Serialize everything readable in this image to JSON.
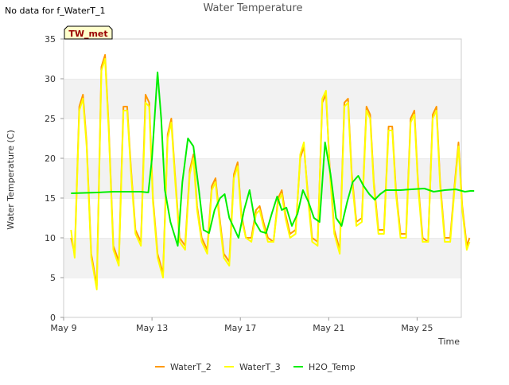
{
  "note": "No data for f_WaterT_1",
  "chart_data": {
    "type": "line",
    "title": "Water Temperature",
    "xlabel": "Time",
    "ylabel": "Water Temperature (C)",
    "site_badge": "TW_met",
    "ylim": [
      0,
      35
    ],
    "yticks": [
      0,
      5,
      10,
      15,
      20,
      25,
      30,
      35
    ],
    "xlim": [
      "2024-05-09",
      "2024-05-27"
    ],
    "xticks": [
      {
        "date": "2024-05-09",
        "label": "May 9"
      },
      {
        "date": "2024-05-13",
        "label": "May 13"
      },
      {
        "date": "2024-05-17",
        "label": "May 17"
      },
      {
        "date": "2024-05-21",
        "label": "May 21"
      },
      {
        "date": "2024-05-25",
        "label": "May 25"
      }
    ],
    "grid": "horizontal bands",
    "legend_position": "bottom",
    "series": [
      {
        "name": "WaterT_2",
        "color": "#ff9900",
        "points": [
          [
            "2024-05-09T08:00",
            10.0
          ],
          [
            "2024-05-09T12:00",
            8.0
          ],
          [
            "2024-05-09T17:00",
            26.5
          ],
          [
            "2024-05-09T21:00",
            28.0
          ],
          [
            "2024-05-10T01:00",
            22.0
          ],
          [
            "2024-05-10T06:00",
            8.0
          ],
          [
            "2024-05-10T12:00",
            4.0
          ],
          [
            "2024-05-10T17:00",
            31.5
          ],
          [
            "2024-05-10T21:00",
            33.0
          ],
          [
            "2024-05-11T01:00",
            24.0
          ],
          [
            "2024-05-11T06:00",
            9.0
          ],
          [
            "2024-05-11T12:00",
            7.0
          ],
          [
            "2024-05-11T17:00",
            26.5
          ],
          [
            "2024-05-11T21:00",
            26.5
          ],
          [
            "2024-05-12T01:00",
            19.0
          ],
          [
            "2024-05-12T06:00",
            11.0
          ],
          [
            "2024-05-12T12:00",
            9.5
          ],
          [
            "2024-05-12T17:00",
            28.0
          ],
          [
            "2024-05-12T21:00",
            27.0
          ],
          [
            "2024-05-13T01:00",
            15.0
          ],
          [
            "2024-05-13T06:00",
            8.0
          ],
          [
            "2024-05-13T12:00",
            5.5
          ],
          [
            "2024-05-13T17:00",
            23.0
          ],
          [
            "2024-05-13T21:00",
            25.0
          ],
          [
            "2024-05-14T01:00",
            18.0
          ],
          [
            "2024-05-14T06:00",
            10.0
          ],
          [
            "2024-05-14T12:00",
            9.0
          ],
          [
            "2024-05-14T17:00",
            18.5
          ],
          [
            "2024-05-14T21:00",
            20.5
          ],
          [
            "2024-05-15T01:00",
            14.0
          ],
          [
            "2024-05-15T06:00",
            10.0
          ],
          [
            "2024-05-15T12:00",
            8.5
          ],
          [
            "2024-05-15T17:00",
            16.5
          ],
          [
            "2024-05-15T21:00",
            17.5
          ],
          [
            "2024-05-16T01:00",
            13.0
          ],
          [
            "2024-05-16T06:00",
            8.0
          ],
          [
            "2024-05-16T12:00",
            7.0
          ],
          [
            "2024-05-16T17:00",
            18.0
          ],
          [
            "2024-05-16T21:00",
            19.5
          ],
          [
            "2024-05-17T01:00",
            13.0
          ],
          [
            "2024-05-17T06:00",
            10.0
          ],
          [
            "2024-05-17T12:00",
            10.0
          ],
          [
            "2024-05-17T17:00",
            13.5
          ],
          [
            "2024-05-17T21:00",
            14.0
          ],
          [
            "2024-05-18T01:00",
            12.0
          ],
          [
            "2024-05-18T06:00",
            10.0
          ],
          [
            "2024-05-18T12:00",
            9.5
          ],
          [
            "2024-05-18T17:00",
            15.0
          ],
          [
            "2024-05-18T21:00",
            16.0
          ],
          [
            "2024-05-19T01:00",
            13.0
          ],
          [
            "2024-05-19T06:00",
            10.5
          ],
          [
            "2024-05-19T12:00",
            11.0
          ],
          [
            "2024-05-19T17:00",
            20.0
          ],
          [
            "2024-05-19T21:00",
            21.5
          ],
          [
            "2024-05-20T01:00",
            16.0
          ],
          [
            "2024-05-20T06:00",
            10.0
          ],
          [
            "2024-05-20T12:00",
            9.5
          ],
          [
            "2024-05-20T17:00",
            27.0
          ],
          [
            "2024-05-20T21:00",
            28.0
          ],
          [
            "2024-05-21T01:00",
            19.0
          ],
          [
            "2024-05-21T06:00",
            11.0
          ],
          [
            "2024-05-21T12:00",
            8.5
          ],
          [
            "2024-05-21T17:00",
            27.0
          ],
          [
            "2024-05-21T21:00",
            27.5
          ],
          [
            "2024-05-22T01:00",
            18.0
          ],
          [
            "2024-05-22T06:00",
            12.0
          ],
          [
            "2024-05-22T12:00",
            12.5
          ],
          [
            "2024-05-22T17:00",
            26.5
          ],
          [
            "2024-05-22T21:00",
            25.5
          ],
          [
            "2024-05-23T01:00",
            17.0
          ],
          [
            "2024-05-23T06:00",
            11.0
          ],
          [
            "2024-05-23T12:00",
            11.0
          ],
          [
            "2024-05-23T17:00",
            24.0
          ],
          [
            "2024-05-23T21:00",
            24.0
          ],
          [
            "2024-05-24T01:00",
            16.0
          ],
          [
            "2024-05-24T06:00",
            10.5
          ],
          [
            "2024-05-24T12:00",
            10.5
          ],
          [
            "2024-05-24T17:00",
            25.0
          ],
          [
            "2024-05-24T21:00",
            26.0
          ],
          [
            "2024-05-25T01:00",
            17.0
          ],
          [
            "2024-05-25T06:00",
            10.0
          ],
          [
            "2024-05-25T12:00",
            9.5
          ],
          [
            "2024-05-25T17:00",
            25.5
          ],
          [
            "2024-05-25T21:00",
            26.5
          ],
          [
            "2024-05-26T01:00",
            17.0
          ],
          [
            "2024-05-26T06:00",
            10.0
          ],
          [
            "2024-05-26T12:00",
            10.0
          ],
          [
            "2024-05-26T17:00",
            17.0
          ],
          [
            "2024-05-26T21:00",
            22.0
          ],
          [
            "2024-05-27T01:00",
            14.0
          ],
          [
            "2024-05-27T06:00",
            9.0
          ],
          [
            "2024-05-27T09:00",
            10.0
          ]
        ]
      },
      {
        "name": "WaterT_3",
        "color": "#ffff00",
        "points": [
          [
            "2024-05-09T08:00",
            11.0
          ],
          [
            "2024-05-09T12:00",
            7.5
          ],
          [
            "2024-05-09T17:00",
            26.0
          ],
          [
            "2024-05-09T21:00",
            27.5
          ],
          [
            "2024-05-10T01:00",
            21.5
          ],
          [
            "2024-05-10T06:00",
            7.5
          ],
          [
            "2024-05-10T12:00",
            3.5
          ],
          [
            "2024-05-10T17:00",
            31.0
          ],
          [
            "2024-05-10T21:00",
            32.5
          ],
          [
            "2024-05-11T01:00",
            23.5
          ],
          [
            "2024-05-11T06:00",
            8.5
          ],
          [
            "2024-05-11T12:00",
            6.5
          ],
          [
            "2024-05-11T17:00",
            26.0
          ],
          [
            "2024-05-11T21:00",
            26.0
          ],
          [
            "2024-05-12T01:00",
            18.5
          ],
          [
            "2024-05-12T06:00",
            10.5
          ],
          [
            "2024-05-12T12:00",
            9.0
          ],
          [
            "2024-05-12T17:00",
            27.0
          ],
          [
            "2024-05-12T21:00",
            26.5
          ],
          [
            "2024-05-13T01:00",
            14.5
          ],
          [
            "2024-05-13T06:00",
            7.5
          ],
          [
            "2024-05-13T12:00",
            5.0
          ],
          [
            "2024-05-13T17:00",
            22.5
          ],
          [
            "2024-05-13T21:00",
            24.5
          ],
          [
            "2024-05-14T01:00",
            17.5
          ],
          [
            "2024-05-14T06:00",
            9.5
          ],
          [
            "2024-05-14T12:00",
            8.5
          ],
          [
            "2024-05-14T17:00",
            18.0
          ],
          [
            "2024-05-14T21:00",
            20.0
          ],
          [
            "2024-05-15T01:00",
            13.5
          ],
          [
            "2024-05-15T06:00",
            9.5
          ],
          [
            "2024-05-15T12:00",
            8.0
          ],
          [
            "2024-05-15T17:00",
            16.0
          ],
          [
            "2024-05-15T21:00",
            17.0
          ],
          [
            "2024-05-16T01:00",
            12.5
          ],
          [
            "2024-05-16T06:00",
            7.5
          ],
          [
            "2024-05-16T12:00",
            6.5
          ],
          [
            "2024-05-16T17:00",
            17.5
          ],
          [
            "2024-05-16T21:00",
            19.0
          ],
          [
            "2024-05-17T01:00",
            12.5
          ],
          [
            "2024-05-17T06:00",
            10.0
          ],
          [
            "2024-05-17T12:00",
            9.5
          ],
          [
            "2024-05-17T17:00",
            13.0
          ],
          [
            "2024-05-17T21:00",
            13.5
          ],
          [
            "2024-05-18T01:00",
            11.5
          ],
          [
            "2024-05-18T06:00",
            9.5
          ],
          [
            "2024-05-18T12:00",
            9.5
          ],
          [
            "2024-05-18T17:00",
            14.5
          ],
          [
            "2024-05-18T21:00",
            15.5
          ],
          [
            "2024-05-19T01:00",
            12.5
          ],
          [
            "2024-05-19T06:00",
            10.0
          ],
          [
            "2024-05-19T12:00",
            10.5
          ],
          [
            "2024-05-19T17:00",
            20.5
          ],
          [
            "2024-05-19T21:00",
            22.0
          ],
          [
            "2024-05-20T01:00",
            15.5
          ],
          [
            "2024-05-20T06:00",
            9.5
          ],
          [
            "2024-05-20T12:00",
            9.0
          ],
          [
            "2024-05-20T17:00",
            27.5
          ],
          [
            "2024-05-20T21:00",
            28.5
          ],
          [
            "2024-05-21T01:00",
            18.5
          ],
          [
            "2024-05-21T06:00",
            10.5
          ],
          [
            "2024-05-21T12:00",
            8.0
          ],
          [
            "2024-05-21T17:00",
            26.5
          ],
          [
            "2024-05-21T21:00",
            27.0
          ],
          [
            "2024-05-22T01:00",
            17.5
          ],
          [
            "2024-05-22T06:00",
            11.5
          ],
          [
            "2024-05-22T12:00",
            12.0
          ],
          [
            "2024-05-22T17:00",
            26.0
          ],
          [
            "2024-05-22T21:00",
            25.0
          ],
          [
            "2024-05-23T01:00",
            16.5
          ],
          [
            "2024-05-23T06:00",
            10.5
          ],
          [
            "2024-05-23T12:00",
            10.5
          ],
          [
            "2024-05-23T17:00",
            23.5
          ],
          [
            "2024-05-23T21:00",
            23.5
          ],
          [
            "2024-05-24T01:00",
            15.5
          ],
          [
            "2024-05-24T06:00",
            10.0
          ],
          [
            "2024-05-24T12:00",
            10.0
          ],
          [
            "2024-05-24T17:00",
            24.5
          ],
          [
            "2024-05-24T21:00",
            25.5
          ],
          [
            "2024-05-25T01:00",
            16.5
          ],
          [
            "2024-05-25T06:00",
            9.5
          ],
          [
            "2024-05-25T12:00",
            9.5
          ],
          [
            "2024-05-25T17:00",
            25.0
          ],
          [
            "2024-05-25T21:00",
            26.0
          ],
          [
            "2024-05-26T01:00",
            16.5
          ],
          [
            "2024-05-26T06:00",
            9.5
          ],
          [
            "2024-05-26T12:00",
            9.5
          ],
          [
            "2024-05-26T17:00",
            16.5
          ],
          [
            "2024-05-26T21:00",
            21.5
          ],
          [
            "2024-05-27T01:00",
            13.5
          ],
          [
            "2024-05-27T06:00",
            8.5
          ],
          [
            "2024-05-27T09:00",
            9.5
          ]
        ]
      },
      {
        "name": "H2O_Temp",
        "color": "#00ee00",
        "points": [
          [
            "2024-05-09T08:00",
            15.6
          ],
          [
            "2024-05-10T12:00",
            15.7
          ],
          [
            "2024-05-11T06:00",
            15.8
          ],
          [
            "2024-05-12T12:00",
            15.8
          ],
          [
            "2024-05-12T20:00",
            15.7
          ],
          [
            "2024-05-13T00:00",
            20.0
          ],
          [
            "2024-05-13T06:00",
            30.8
          ],
          [
            "2024-05-13T10:00",
            25.0
          ],
          [
            "2024-05-13T14:00",
            16.0
          ],
          [
            "2024-05-13T20:00",
            12.0
          ],
          [
            "2024-05-14T00:00",
            10.5
          ],
          [
            "2024-05-14T04:00",
            9.0
          ],
          [
            "2024-05-14T09:00",
            17.0
          ],
          [
            "2024-05-14T15:00",
            22.5
          ],
          [
            "2024-05-14T21:00",
            21.5
          ],
          [
            "2024-05-15T03:00",
            16.0
          ],
          [
            "2024-05-15T08:00",
            11.0
          ],
          [
            "2024-05-15T14:00",
            10.6
          ],
          [
            "2024-05-15T20:00",
            13.5
          ],
          [
            "2024-05-16T02:00",
            15.0
          ],
          [
            "2024-05-16T07:00",
            15.5
          ],
          [
            "2024-05-16T12:00",
            12.5
          ],
          [
            "2024-05-16T18:00",
            11.0
          ],
          [
            "2024-05-16T22:00",
            10.0
          ],
          [
            "2024-05-17T04:00",
            13.5
          ],
          [
            "2024-05-17T10:00",
            16.0
          ],
          [
            "2024-05-17T16:00",
            12.0
          ],
          [
            "2024-05-17T22:00",
            10.8
          ],
          [
            "2024-05-18T04:00",
            10.6
          ],
          [
            "2024-05-18T10:00",
            13.0
          ],
          [
            "2024-05-18T16:00",
            15.2
          ],
          [
            "2024-05-18T21:00",
            13.5
          ],
          [
            "2024-05-19T02:00",
            13.8
          ],
          [
            "2024-05-19T08:00",
            11.5
          ],
          [
            "2024-05-19T14:00",
            13.0
          ],
          [
            "2024-05-19T20:00",
            16.0
          ],
          [
            "2024-05-20T02:00",
            14.5
          ],
          [
            "2024-05-20T08:00",
            12.5
          ],
          [
            "2024-05-20T14:00",
            12.0
          ],
          [
            "2024-05-20T20:00",
            22.0
          ],
          [
            "2024-05-21T02:00",
            18.0
          ],
          [
            "2024-05-21T08:00",
            12.5
          ],
          [
            "2024-05-21T14:00",
            11.5
          ],
          [
            "2024-05-21T20:00",
            14.5
          ],
          [
            "2024-05-22T02:00",
            17.0
          ],
          [
            "2024-05-22T08:00",
            17.8
          ],
          [
            "2024-05-22T14:00",
            16.5
          ],
          [
            "2024-05-22T20:00",
            15.5
          ],
          [
            "2024-05-23T02:00",
            14.8
          ],
          [
            "2024-05-23T08:00",
            15.5
          ],
          [
            "2024-05-23T14:00",
            16.0
          ],
          [
            "2024-05-24T06:00",
            16.0
          ],
          [
            "2024-05-24T18:00",
            16.1
          ],
          [
            "2024-05-25T08:00",
            16.2
          ],
          [
            "2024-05-25T18:00",
            15.8
          ],
          [
            "2024-05-26T06:00",
            16.0
          ],
          [
            "2024-05-26T18:00",
            16.1
          ],
          [
            "2024-05-27T04:00",
            15.8
          ],
          [
            "2024-05-27T10:00",
            15.9
          ],
          [
            "2024-05-27T14:00",
            15.9
          ]
        ]
      }
    ]
  }
}
